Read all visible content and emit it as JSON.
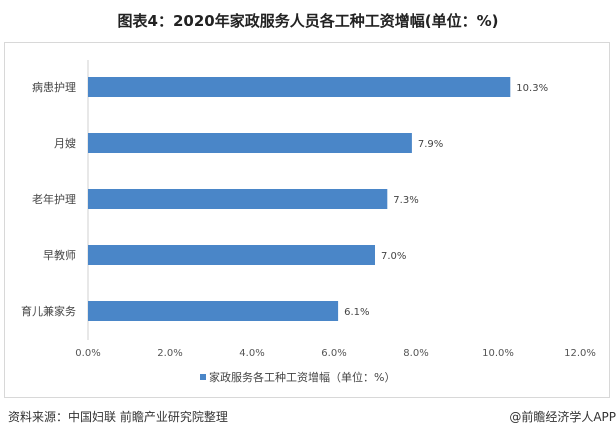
{
  "title": "图表4：2020年家政服务人员各工种工资增幅(单位：%)",
  "source": "资料来源：中国妇联 前瞻产业研究院整理",
  "credit": "@前瞻经济学人APP",
  "chart_data": {
    "type": "bar",
    "orientation": "horizontal",
    "categories": [
      "病患护理",
      "月嫂",
      "老年护理",
      "早教师",
      "育儿兼家务"
    ],
    "series": [
      {
        "name": "家政服务各工种工资增幅（单位：%）",
        "values": [
          10.3,
          7.9,
          7.3,
          7.0,
          6.1
        ],
        "color": "#4a86c8"
      }
    ],
    "data_labels": [
      "10.3%",
      "7.9%",
      "7.3%",
      "7.0%",
      "6.1%"
    ],
    "xlim": [
      0,
      12
    ],
    "x_ticks": [
      "0.0%",
      "2.0%",
      "4.0%",
      "6.0%",
      "8.0%",
      "10.0%",
      "12.0%"
    ],
    "grid": false,
    "legend_position": "bottom"
  }
}
